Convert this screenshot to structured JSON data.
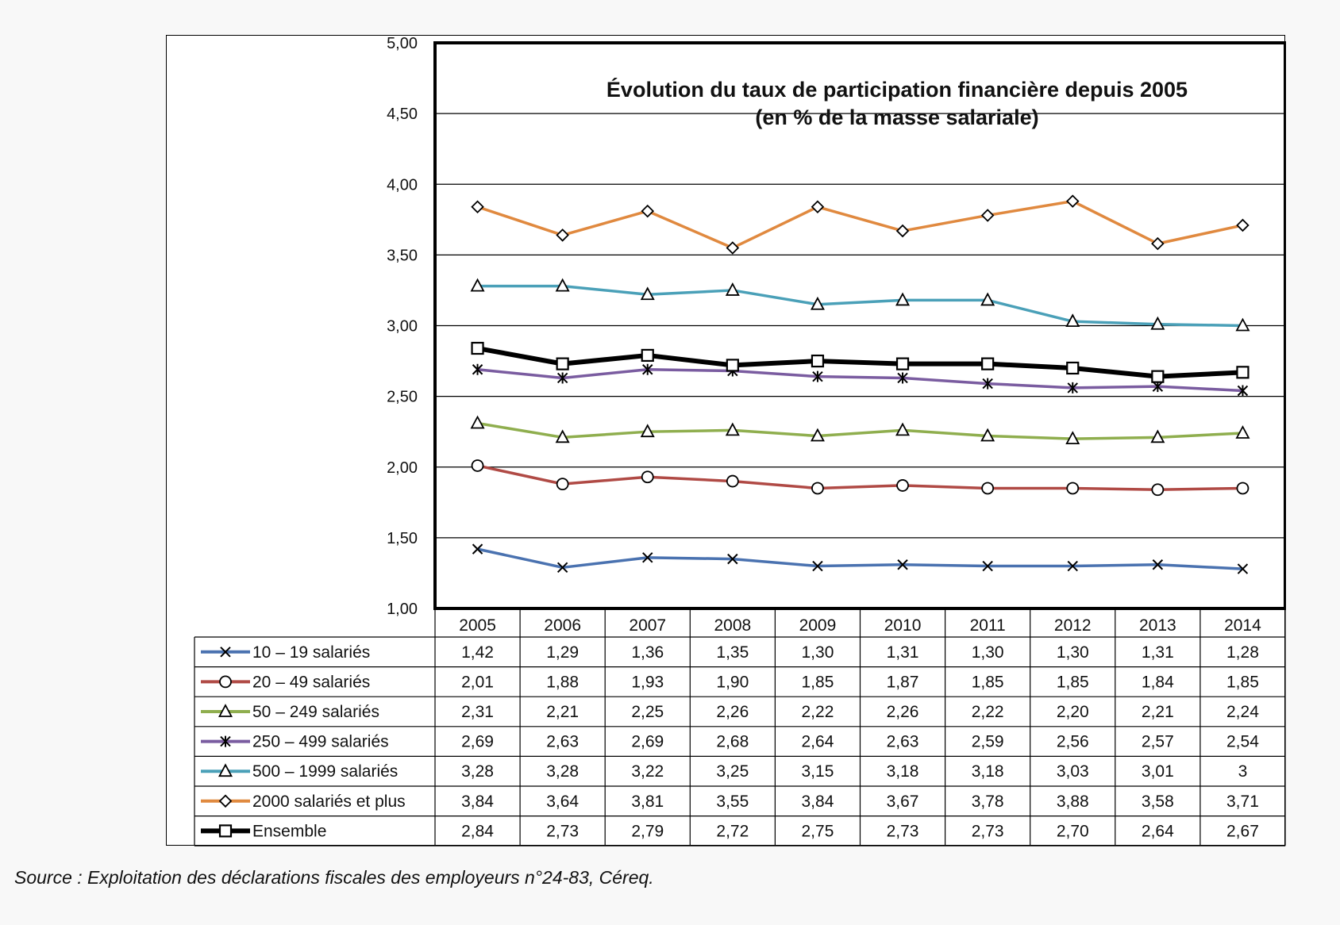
{
  "chart_data": {
    "type": "line",
    "title": "Évolution du taux de participation financière depuis 2005",
    "subtitle": "(en % de la masse salariale)",
    "ylim": [
      1.0,
      5.0
    ],
    "ytick_labels": [
      "1,00",
      "1,50",
      "2,00",
      "2,50",
      "3,00",
      "3,50",
      "4,00",
      "4,50",
      "5,00"
    ],
    "grid": true,
    "legend": "data-table-below",
    "categories": [
      "2005",
      "2006",
      "2007",
      "2008",
      "2009",
      "2010",
      "2011",
      "2012",
      "2013",
      "2014"
    ],
    "series": [
      {
        "name": "10 – 19 salariés",
        "color": "#4a72b0",
        "marker": "x",
        "values": [
          1.42,
          1.29,
          1.36,
          1.35,
          1.3,
          1.31,
          1.3,
          1.3,
          1.31,
          1.28
        ],
        "labels": [
          "1,42",
          "1,29",
          "1,36",
          "1,35",
          "1,30",
          "1,31",
          "1,30",
          "1,30",
          "1,31",
          "1,28"
        ]
      },
      {
        "name": "20 – 49 salariés",
        "color": "#b04a45",
        "marker": "circle",
        "values": [
          2.01,
          1.88,
          1.93,
          1.9,
          1.85,
          1.87,
          1.85,
          1.85,
          1.84,
          1.85
        ],
        "labels": [
          "2,01",
          "1,88",
          "1,93",
          "1,90",
          "1,85",
          "1,87",
          "1,85",
          "1,85",
          "1,84",
          "1,85"
        ]
      },
      {
        "name": "50 – 249 salariés",
        "color": "#8fae4e",
        "marker": "triangle",
        "values": [
          2.31,
          2.21,
          2.25,
          2.26,
          2.22,
          2.26,
          2.22,
          2.2,
          2.21,
          2.24
        ],
        "labels": [
          "2,31",
          "2,21",
          "2,25",
          "2,26",
          "2,22",
          "2,26",
          "2,22",
          "2,20",
          "2,21",
          "2,24"
        ]
      },
      {
        "name": "250 – 499 salariés",
        "color": "#7a5ca0",
        "marker": "asterisk",
        "values": [
          2.69,
          2.63,
          2.69,
          2.68,
          2.64,
          2.63,
          2.59,
          2.56,
          2.57,
          2.54
        ],
        "labels": [
          "2,69",
          "2,63",
          "2,69",
          "2,68",
          "2,64",
          "2,63",
          "2,59",
          "2,56",
          "2,57",
          "2,54"
        ]
      },
      {
        "name": "500 – 1999 salariés",
        "color": "#4aa0b8",
        "marker": "triangle",
        "values": [
          3.28,
          3.28,
          3.22,
          3.25,
          3.15,
          3.18,
          3.18,
          3.03,
          3.01,
          3.0
        ],
        "labels": [
          "3,28",
          "3,28",
          "3,22",
          "3,25",
          "3,15",
          "3,18",
          "3,18",
          "3,03",
          "3,01",
          "3"
        ]
      },
      {
        "name": "2000 salariés et plus",
        "color": "#e0893f",
        "marker": "diamond",
        "values": [
          3.84,
          3.64,
          3.81,
          3.55,
          3.84,
          3.67,
          3.78,
          3.88,
          3.58,
          3.71
        ],
        "labels": [
          "3,84",
          "3,64",
          "3,81",
          "3,55",
          "3,84",
          "3,67",
          "3,78",
          "3,88",
          "3,58",
          "3,71"
        ]
      },
      {
        "name": "Ensemble",
        "color": "#000000",
        "marker": "square",
        "bold": true,
        "values": [
          2.84,
          2.73,
          2.79,
          2.72,
          2.75,
          2.73,
          2.73,
          2.7,
          2.64,
          2.67
        ],
        "labels": [
          "2,84",
          "2,73",
          "2,79",
          "2,72",
          "2,75",
          "2,73",
          "2,73",
          "2,70",
          "2,64",
          "2,67"
        ]
      }
    ]
  },
  "source": "Source : Exploitation des déclarations fiscales des employeurs n°24-83, Céreq."
}
